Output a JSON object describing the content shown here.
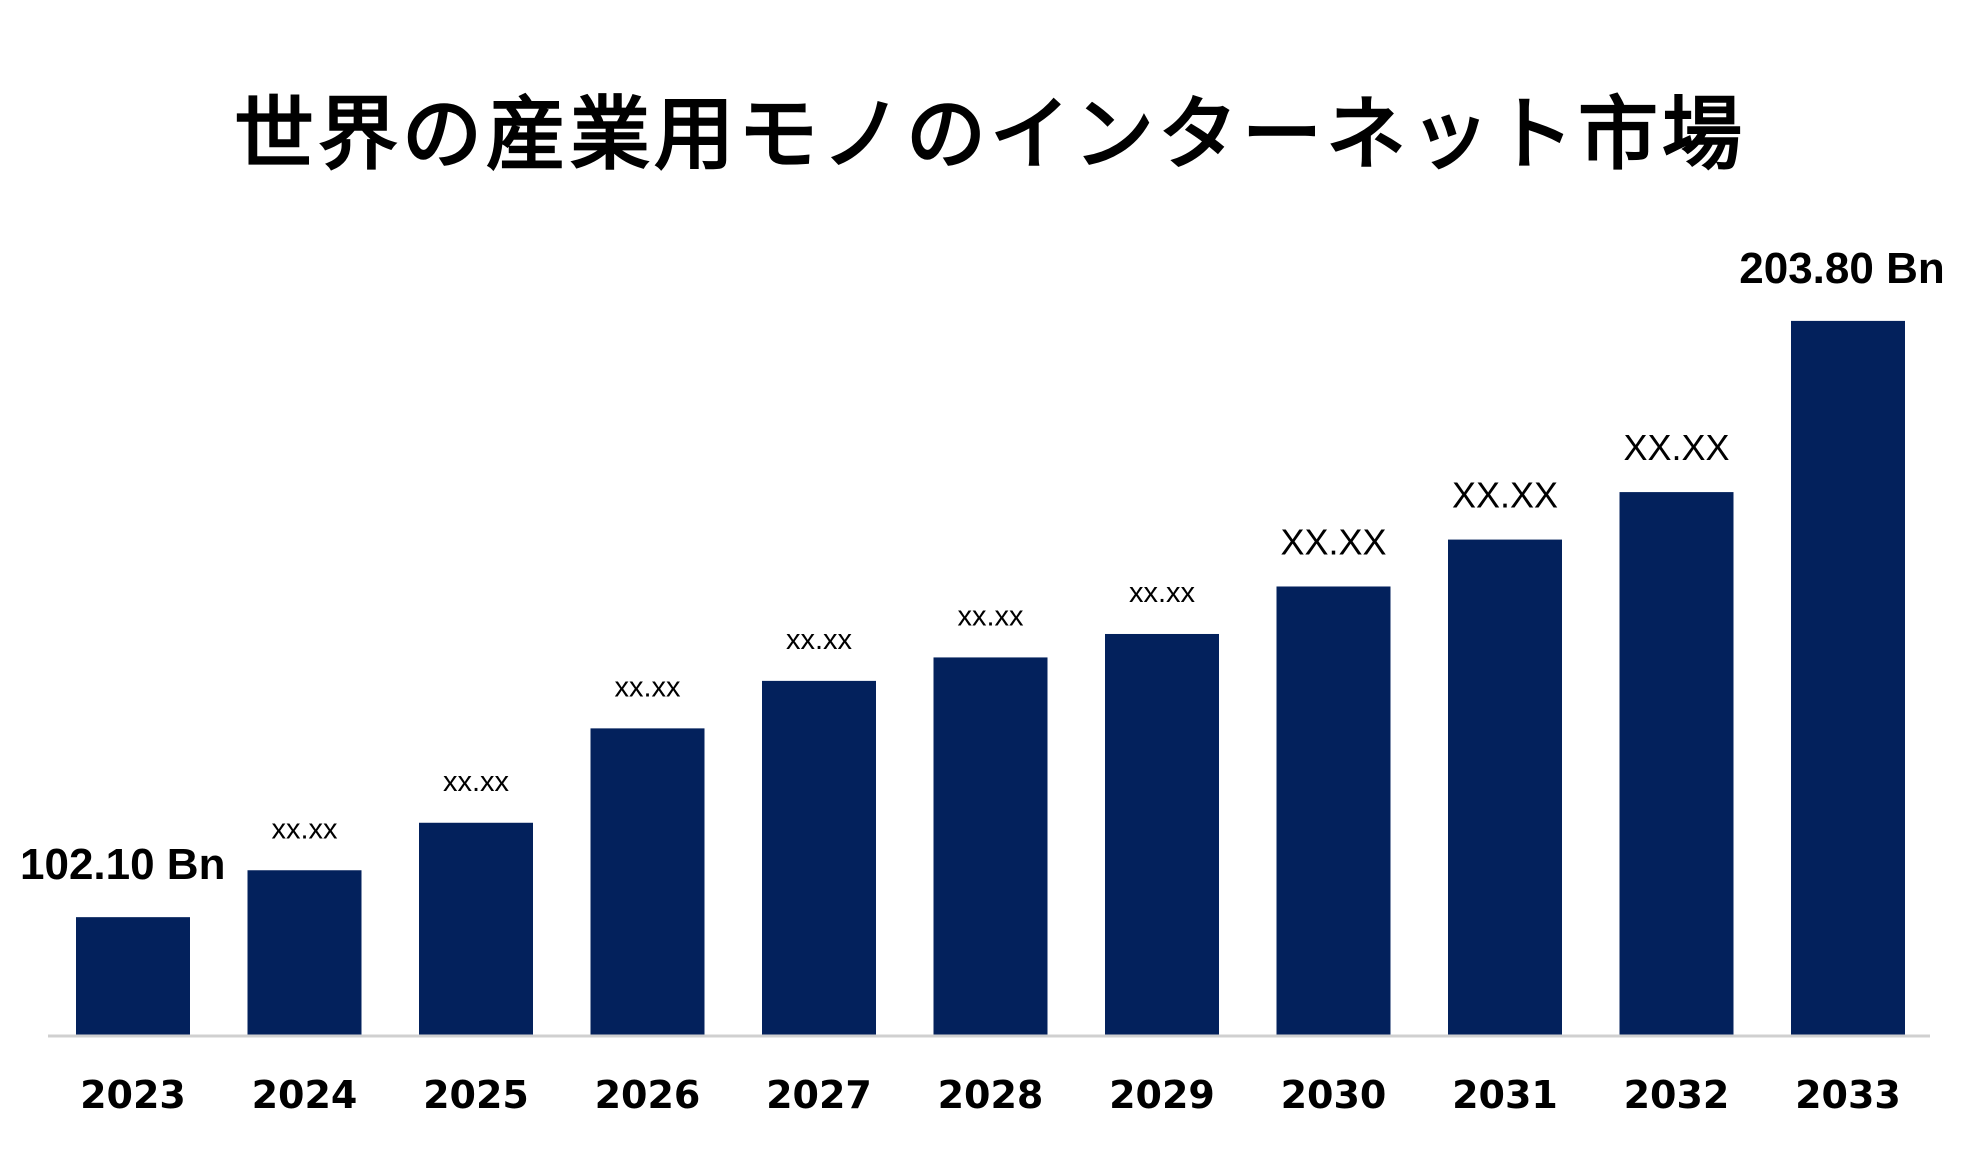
{
  "colors": {
    "bar": "#03215c",
    "axis": "#d0d0d0",
    "text": "#000000",
    "background": "#ffffff"
  },
  "chart_data": {
    "type": "bar",
    "title": "世界の産業用モノのインターネット市場",
    "xlabel": "",
    "ylabel": "",
    "categories": [
      "2023",
      "2024",
      "2025",
      "2026",
      "2027",
      "2028",
      "2029",
      "2030",
      "2031",
      "2032",
      "2033"
    ],
    "values": [
      102.1,
      110.1,
      118.2,
      134.3,
      142.4,
      146.4,
      150.4,
      158.5,
      166.5,
      174.6,
      203.8
    ],
    "data_labels": [
      "102.10 Bn",
      "xx.xx",
      "xx.xx",
      "xx.xx",
      "xx.xx",
      "xx.xx",
      "xx.xx",
      "XX.XX",
      "XX.XX",
      "XX.XX",
      "203.80 Bn"
    ],
    "ylim": [
      82,
      206
    ],
    "grid": false,
    "legend": "none"
  }
}
